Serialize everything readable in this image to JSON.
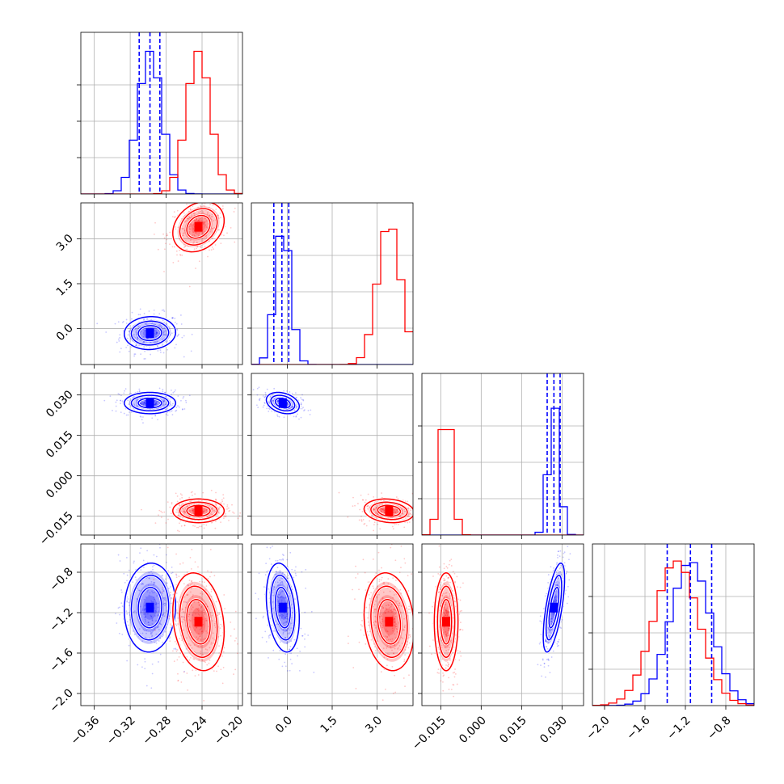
{
  "chart_data": {
    "type": "corner",
    "params": [
      {
        "range": [
          -0.375,
          -0.195
        ],
        "ticks": [
          -0.36,
          -0.32,
          -0.28,
          -0.24,
          -0.2
        ],
        "tick_labels": [
          "−0.36",
          "−0.32",
          "−0.28",
          "−0.24",
          "−0.20"
        ]
      },
      {
        "range": [
          -1.2,
          4.2
        ],
        "ticks": [
          0.0,
          1.5,
          3.0
        ],
        "tick_labels": [
          "0.0",
          "1.5",
          "3.0"
        ]
      },
      {
        "range": [
          -0.022,
          0.038
        ],
        "ticks": [
          -0.015,
          0.0,
          0.015,
          0.03
        ],
        "tick_labels": [
          "−0.015",
          "0.000",
          "0.015",
          "0.030"
        ]
      },
      {
        "range": [
          -2.12,
          -0.52
        ],
        "ticks": [
          -2.0,
          -1.6,
          -1.2,
          -0.8
        ],
        "tick_labels": [
          "−2.0",
          "−1.6",
          "−1.2",
          "−0.8"
        ]
      }
    ],
    "series": [
      {
        "color": "#0000ff",
        "mean": [
          -0.298,
          -0.15,
          0.027,
          -1.15
        ],
        "std": [
          0.013,
          0.25,
          0.0018,
          0.2
        ],
        "quantile_lines": true
      },
      {
        "color": "#ff0000",
        "mean": [
          -0.244,
          3.4,
          -0.013,
          -1.29
        ],
        "std": [
          0.013,
          0.38,
          0.002,
          0.22
        ],
        "quantile_lines": false
      }
    ],
    "quantiles": {
      "param_0": [
        -0.31,
        -0.298,
        -0.287
      ],
      "param_1": [
        -0.45,
        -0.18,
        0.05
      ],
      "param_2": [
        0.0245,
        0.027,
        0.0293
      ],
      "param_3": [
        -1.38,
        -1.15,
        -0.94
      ]
    },
    "grid": true,
    "tick_rotation_deg": 45,
    "contour_levels": [
      1.0,
      1.6,
      2.2
    ]
  }
}
